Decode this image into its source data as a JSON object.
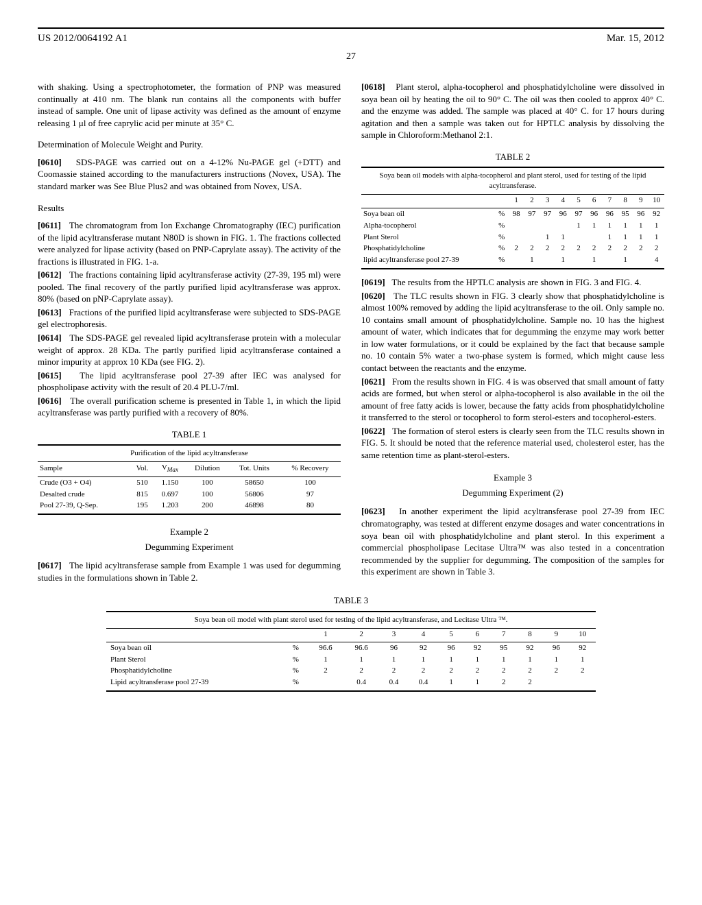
{
  "header": {
    "pub_number": "US 2012/0064192 A1",
    "pub_date": "Mar. 15, 2012",
    "page": "27"
  },
  "left": {
    "p0_cont": "with shaking. Using a spectrophotometer, the formation of PNP was measured continually at 410 nm. The blank run contains all the components with buffer instead of sample. One unit of lipase activity was defined as the amount of enzyme releasing 1 μl of free caprylic acid per minute at 35° C.",
    "sub_mw": "Determination of Molecule Weight and Purity.",
    "p0610_num": "[0610]",
    "p0610": "SDS-PAGE was carried out on a 4-12% Nu-PAGE gel (+DTT) and Coomassie stained according to the manufacturers instructions (Novex, USA). The standard marker was See Blue Plus2 and was obtained from Novex, USA.",
    "sub_results": "Results",
    "p0611_num": "[0611]",
    "p0611": "The chromatogram from Ion Exchange Chromatography (IEC) purification of the lipid acyltransferase mutant N80D is shown in FIG. 1. The fractions collected were analyzed for lipase activity (based on PNP-Caprylate assay). The activity of the fractions is illustrated in FIG. 1-a.",
    "p0612_num": "[0612]",
    "p0612": "The fractions containing lipid acyltransferase activity (27-39, 195 ml) were pooled. The final recovery of the partly purified lipid acyltransferase was approx. 80% (based on pNP-Caprylate assay).",
    "p0613_num": "[0613]",
    "p0613": "Fractions of the purified lipid acyltransferase were subjected to SDS-PAGE gel electrophoresis.",
    "p0614_num": "[0614]",
    "p0614": "The SDS-PAGE gel revealed lipid acyltransferase protein with a molecular weight of approx. 28 KDa. The partly purified lipid acyltransferase contained a minor impurity at approx 10 KDa (see FIG. 2).",
    "p0615_num": "[0615]",
    "p0615": "The lipid acyltransferase pool 27-39 after IEC was analysed for phospholipase activity with the result of 20.4 PLU-7/ml.",
    "p0616_num": "[0616]",
    "p0616": "The overall purification scheme is presented in Table 1, in which the lipid acyltransferase was partly purified with a recovery of 80%.",
    "table1": {
      "label": "TABLE 1",
      "caption": "Purification of the lipid acyltransferase",
      "columns": [
        "Sample",
        "Vol.",
        "V_Max",
        "Dilution",
        "Tot. Units",
        "% Recovery"
      ],
      "rows": [
        [
          "Crude (O3 + O4)",
          "510",
          "1.150",
          "100",
          "58650",
          "100"
        ],
        [
          "Desalted crude",
          "815",
          "0.697",
          "100",
          "56806",
          "97"
        ],
        [
          "Pool 27-39, Q-Sep.",
          "195",
          "1.203",
          "200",
          "46898",
          "80"
        ]
      ]
    },
    "ex2_title": "Example 2",
    "ex2_sub": "Degumming Experiment",
    "p0617_num": "[0617]",
    "p0617": "The lipid acyltransferase sample from Example 1 was used for degumming studies in the formulations shown in Table 2."
  },
  "right": {
    "p0618_num": "[0618]",
    "p0618": "Plant sterol, alpha-tocopherol and phosphatidylcholine were dissolved in soya bean oil by heating the oil to 90° C. The oil was then cooled to approx 40° C. and the enzyme was added. The sample was placed at 40° C. for 17 hours during agitation and then a sample was taken out for HPTLC analysis by dissolving the sample in Chloroform:Methanol 2:1.",
    "table2": {
      "label": "TABLE 2",
      "caption": "Soya bean oil models with alpha-tocopherol and plant sterol, used for testing of the lipid acyltransferase.",
      "col_nums": [
        "1",
        "2",
        "3",
        "4",
        "5",
        "6",
        "7",
        "8",
        "9",
        "10"
      ],
      "rows": [
        {
          "label": "Soya bean oil",
          "unit": "%",
          "v": [
            "98",
            "97",
            "97",
            "96",
            "97",
            "96",
            "96",
            "95",
            "96",
            "92"
          ]
        },
        {
          "label": "Alpha-tocopherol",
          "unit": "%",
          "v": [
            "",
            "",
            "",
            "",
            "1",
            "1",
            "1",
            "1",
            "1",
            "1"
          ]
        },
        {
          "label": "Plant Sterol",
          "unit": "%",
          "v": [
            "",
            "",
            "1",
            "1",
            "",
            "",
            "1",
            "1",
            "1",
            "1"
          ]
        },
        {
          "label": "Phosphatidylcholine",
          "unit": "%",
          "v": [
            "2",
            "2",
            "2",
            "2",
            "2",
            "2",
            "2",
            "2",
            "2",
            "2"
          ]
        },
        {
          "label": "lipid acyltransferase pool 27-39",
          "unit": "%",
          "v": [
            "",
            "1",
            "",
            "1",
            "",
            "1",
            "",
            "1",
            "",
            "4"
          ]
        }
      ]
    },
    "p0619_num": "[0619]",
    "p0619": "The results from the HPTLC analysis are shown in FIG. 3 and FIG. 4.",
    "p0620_num": "[0620]",
    "p0620": "The TLC results shown in FIG. 3 clearly show that phosphatidylcholine is almost 100% removed by adding the lipid acyltransferase to the oil. Only sample no. 10 contains small amount of phosphatidylcholine. Sample no. 10 has the highest amount of water, which indicates that for degumming the enzyme may work better in low water formulations, or it could be explained by the fact that because sample no. 10 contain 5% water a two-phase system is formed, which might cause less contact between the reactants and the enzyme.",
    "p0621_num": "[0621]",
    "p0621": "From the results shown in FIG. 4 is was observed that small amount of fatty acids are formed, but when sterol or alpha-tocopherol is also available in the oil the amount of free fatty acids is lower, because the fatty acids from phosphatidylcholine it transferred to the sterol or tocopherol to form sterol-esters and tocopherol-esters.",
    "p0622_num": "[0622]",
    "p0622": "The formation of sterol esters is clearly seen from the TLC results shown in FIG. 5. It should be noted that the reference material used, cholesterol ester, has the same retention time as plant-sterol-esters.",
    "ex3_title": "Example 3",
    "ex3_sub": "Degumming Experiment (2)",
    "p0623_num": "[0623]",
    "p0623": "In another experiment the lipid acyltransferase pool 27-39 from IEC chromatography, was tested at different enzyme dosages and water concentrations in soya bean oil with phosphatidylcholine and plant sterol. In this experiment a commercial phospholipase Lecitase Ultra™ was also tested in a concentration recommended by the supplier for degumming. The composition of the samples for this experiment are shown in Table 3."
  },
  "table3": {
    "label": "TABLE 3",
    "caption": "Soya bean oil model with plant sterol used for testing of the lipid acyltransferase, and Lecitase Ultra ™.",
    "col_nums": [
      "1",
      "2",
      "3",
      "4",
      "5",
      "6",
      "7",
      "8",
      "9",
      "10"
    ],
    "rows": [
      {
        "label": "Soya bean oil",
        "unit": "%",
        "v": [
          "96.6",
          "96.6",
          "96",
          "92",
          "96",
          "92",
          "95",
          "92",
          "96",
          "92"
        ]
      },
      {
        "label": "Plant Sterol",
        "unit": "%",
        "v": [
          "1",
          "1",
          "1",
          "1",
          "1",
          "1",
          "1",
          "1",
          "1",
          "1"
        ]
      },
      {
        "label": "Phosphatidylcholine",
        "unit": "%",
        "v": [
          "2",
          "2",
          "2",
          "2",
          "2",
          "2",
          "2",
          "2",
          "2",
          "2"
        ]
      },
      {
        "label": "Lipid acyltransferase pool 27-39",
        "unit": "%",
        "v": [
          "",
          "0.4",
          "0.4",
          "0.4",
          "1",
          "1",
          "2",
          "2",
          "",
          ""
        ]
      }
    ]
  }
}
